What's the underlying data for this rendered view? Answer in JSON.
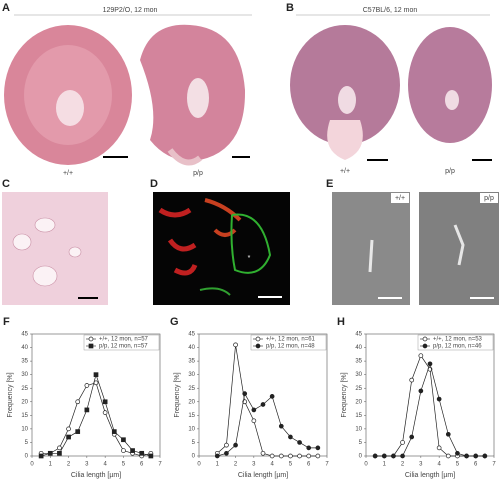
{
  "panels": {
    "a": {
      "label": "A",
      "title": "129P2/O, 12 mon",
      "captions": [
        "+/+",
        "p/p"
      ]
    },
    "b": {
      "label": "B",
      "title": "C57BL/6, 12 mon",
      "captions": [
        "+/+",
        "p/p"
      ]
    },
    "c": {
      "label": "C"
    },
    "d": {
      "label": "D",
      "annotation": "*"
    },
    "e": {
      "label": "E",
      "captions": [
        "+/+",
        "p/p"
      ]
    }
  },
  "chart_data": [
    {
      "type": "line",
      "label": "F",
      "x_label": "Cilia length [µm]",
      "y_label": "Frequency [%]",
      "x": [
        0.5,
        1,
        1.5,
        2,
        2.5,
        3,
        3.5,
        4,
        4.5,
        5,
        5.5,
        6,
        6.5
      ],
      "xlim": [
        0,
        7
      ],
      "xticks": [
        0,
        1,
        2,
        3,
        4,
        5,
        6,
        7
      ],
      "ylim": [
        0,
        45
      ],
      "yticks": [
        0,
        5,
        10,
        15,
        20,
        25,
        30,
        35,
        40,
        45
      ],
      "series": [
        {
          "name": "+/+, 12 mon, n=57",
          "color": "#222",
          "marker": "open-circle",
          "values": [
            1,
            1,
            3,
            10,
            20,
            26,
            27,
            16,
            8,
            2,
            1,
            0,
            1
          ]
        },
        {
          "name": "p/p, 12 mon, n=57",
          "color": "#222",
          "marker": "filled-square",
          "values": [
            0,
            1,
            1,
            7,
            9,
            17,
            30,
            20,
            9,
            6,
            2,
            1,
            0
          ]
        }
      ]
    },
    {
      "type": "line",
      "label": "G",
      "x_label": "Cilia length [µm]",
      "y_label": "Frequency [%]",
      "x": [
        1,
        1.5,
        2,
        2.5,
        3,
        3.5,
        4,
        4.5,
        5,
        5.5,
        6,
        6.5
      ],
      "xlim": [
        0,
        7
      ],
      "xticks": [
        0,
        1,
        2,
        3,
        4,
        5,
        6,
        7
      ],
      "ylim": [
        0,
        45
      ],
      "yticks": [
        0,
        5,
        10,
        15,
        20,
        25,
        30,
        35,
        40,
        45
      ],
      "series": [
        {
          "name": "+/+, 12 mon, n=61",
          "color": "#222",
          "marker": "open-circle",
          "values": [
            1,
            4,
            41,
            20,
            13,
            1,
            0,
            0,
            0,
            0,
            0,
            0
          ]
        },
        {
          "name": "p/p, 12 mon, n=48",
          "color": "#222",
          "marker": "filled-circle",
          "values": [
            0,
            1,
            4,
            23,
            17,
            19,
            22,
            11,
            7,
            5,
            3,
            3
          ]
        }
      ]
    },
    {
      "type": "line",
      "label": "H",
      "x_label": "Cilia length [µm]",
      "y_label": "Frequency [%]",
      "x": [
        0.5,
        1,
        1.5,
        2,
        2.5,
        3,
        3.5,
        4,
        4.5,
        5,
        5.5,
        6,
        6.5
      ],
      "xlim": [
        0,
        7
      ],
      "xticks": [
        0,
        1,
        2,
        3,
        4,
        5,
        6,
        7
      ],
      "ylim": [
        0,
        45
      ],
      "yticks": [
        0,
        5,
        10,
        15,
        20,
        25,
        30,
        35,
        40,
        45
      ],
      "series": [
        {
          "name": "+/+, 12 mon, n=53",
          "color": "#222",
          "marker": "open-circle",
          "values": [
            0,
            0,
            0,
            5,
            28,
            37,
            32,
            3,
            0,
            0,
            0,
            0,
            0
          ]
        },
        {
          "name": "p/p, 12 mon, n=46",
          "color": "#222",
          "marker": "filled-circle",
          "values": [
            0,
            0,
            0,
            0,
            7,
            24,
            34,
            21,
            8,
            1,
            0,
            0,
            0
          ]
        }
      ]
    }
  ]
}
